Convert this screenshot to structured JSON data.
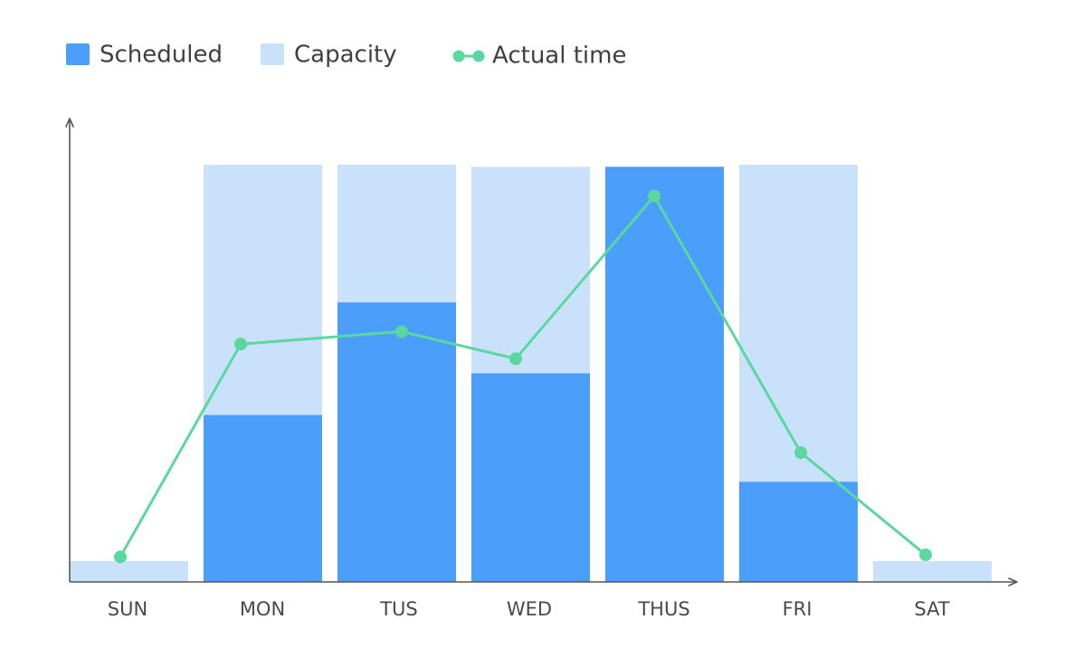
{
  "chart_data": {
    "type": "bar",
    "title": "",
    "xlabel": "",
    "ylabel": "",
    "categories": [
      "SUN",
      "MON",
      "TUS",
      "WED",
      "THUS",
      "FRI",
      "SAT"
    ],
    "ylim": [
      0,
      100
    ],
    "grid": false,
    "legend_position": "top-left",
    "series": [
      {
        "name": "Capacity",
        "kind": "bar",
        "color": "#c9e1fa",
        "values": [
          5,
          100,
          100,
          99.5,
          99.5,
          100,
          5
        ]
      },
      {
        "name": "Scheduled",
        "kind": "bar",
        "color": "#4b9efa",
        "values": [
          0,
          40,
          67,
          50,
          99.5,
          24,
          0
        ]
      },
      {
        "name": "Actual time",
        "kind": "line",
        "color": "#5ad8a0",
        "values": [
          6,
          57,
          60,
          53.5,
          92.5,
          31,
          6.5
        ]
      }
    ],
    "legend": [
      {
        "name": "Scheduled",
        "shape": "square",
        "color": "#4b9efa"
      },
      {
        "name": "Capacity",
        "shape": "square",
        "color": "#c9e1fa"
      },
      {
        "name": "Actual time",
        "shape": "line-marker",
        "color": "#5ad8a0"
      }
    ]
  },
  "colors": {
    "axis": "#555555",
    "text": "#3f3f3f"
  }
}
